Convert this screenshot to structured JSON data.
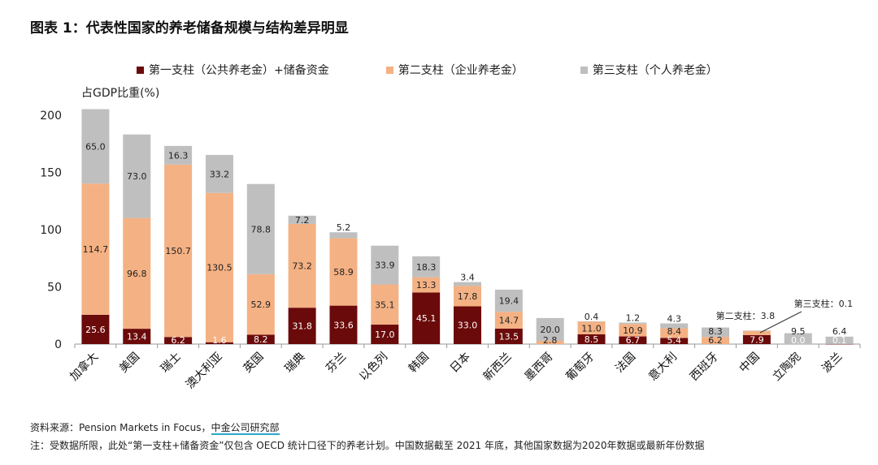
{
  "title": "图表 1：代表性国家的养老储备规模与结构差异明显",
  "chart_data": {
    "type": "bar",
    "stacked": true,
    "ylabel": "占GDP比重(%)",
    "ylim": [
      0,
      200
    ],
    "yticks": [
      0,
      50,
      100,
      150,
      200
    ],
    "grid": false,
    "legend_position": "top",
    "categories": [
      "加拿大",
      "美国",
      "瑞士",
      "澳大利亚",
      "英国",
      "瑞典",
      "芬兰",
      "以色列",
      "韩国",
      "日本",
      "新西兰",
      "墨西哥",
      "葡萄牙",
      "法国",
      "意大利",
      "西班牙",
      "中国",
      "立陶宛",
      "波兰"
    ],
    "series": [
      {
        "name": "第一支柱（公共养老金）+储备资金",
        "color": "#6b0a0a",
        "values": [
          25.6,
          13.4,
          6.2,
          1.6,
          8.2,
          31.8,
          33.6,
          17.0,
          45.1,
          33.0,
          13.5,
          0,
          8.5,
          6.7,
          5.4,
          0,
          7.9,
          0.0,
          0.1
        ]
      },
      {
        "name": "第二支柱（企业养老金）",
        "color": "#f4b183",
        "values": [
          114.7,
          96.8,
          150.7,
          130.5,
          52.9,
          73.2,
          58.9,
          35.1,
          13.3,
          17.8,
          14.7,
          2.8,
          11.0,
          10.9,
          8.4,
          6.2,
          3.8,
          0,
          0
        ]
      },
      {
        "name": "第三支柱（个人养老金）",
        "color": "#bfbfbf",
        "values": [
          65.0,
          73.0,
          16.3,
          33.2,
          78.8,
          7.2,
          5.2,
          33.9,
          18.3,
          3.4,
          19.4,
          20.0,
          0.4,
          1.2,
          4.3,
          8.3,
          0.1,
          9.5,
          6.4
        ]
      }
    ],
    "annotations": [
      "第二支柱：3.8",
      "第三支柱：0.1"
    ]
  },
  "source": "资料来源：Pension Markets in Focus，",
  "source_org": "中金公司研究部",
  "note": "注：受数据所限，此处“第一支柱+储备资金”仅包含 OECD 统计口径下的养老计划。中国数据截至 2021 年底，其他国家数据为2020年数据或最新年份数据"
}
